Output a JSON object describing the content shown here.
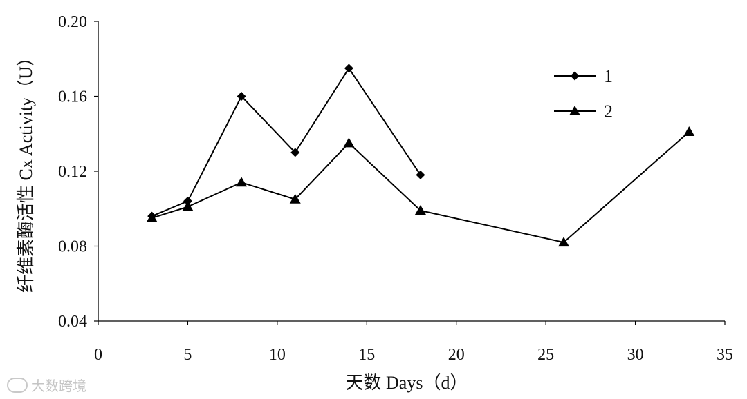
{
  "chart_data": {
    "type": "line",
    "xlabel": "天数 Days（d）",
    "ylabel": "纤维素酶活性 Cx Activity（U）",
    "xlim": [
      0,
      35
    ],
    "ylim": [
      0.04,
      0.2
    ],
    "x_ticks": [
      "0",
      "5",
      "10",
      "15",
      "20",
      "25",
      "30",
      "35"
    ],
    "y_ticks": [
      "0.04",
      "0.08",
      "0.12",
      "0.16",
      "0.20"
    ],
    "grid": false,
    "legend_position": "top-right",
    "series": [
      {
        "name": "1",
        "marker": "diamond",
        "color": "#000000",
        "x": [
          3,
          5,
          8,
          11,
          14,
          18
        ],
        "y": [
          0.096,
          0.104,
          0.16,
          0.13,
          0.175,
          0.118
        ]
      },
      {
        "name": "2",
        "marker": "triangle",
        "color": "#000000",
        "x": [
          3,
          5,
          8,
          11,
          14,
          18,
          26,
          33
        ],
        "y": [
          0.095,
          0.101,
          0.114,
          0.105,
          0.135,
          0.099,
          0.082,
          0.141
        ]
      }
    ]
  },
  "watermark": {
    "text": "大数跨境"
  }
}
